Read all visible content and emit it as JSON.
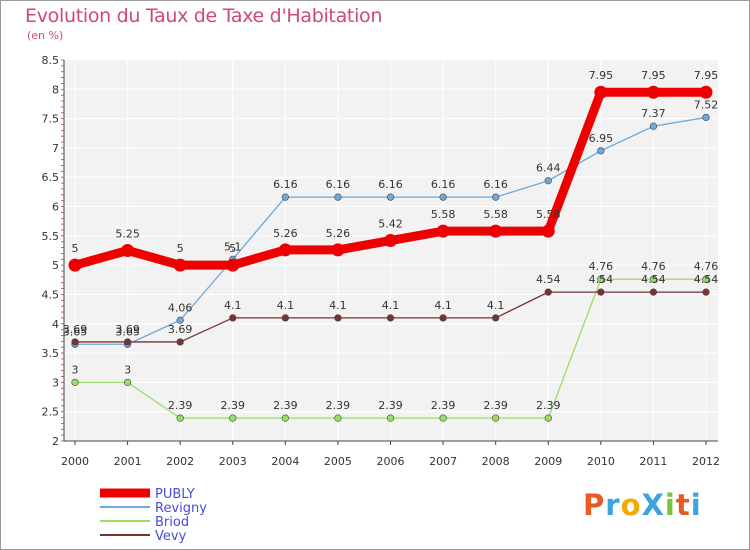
{
  "title": "Evolution du Taux de Taxe d'Habitation",
  "subtitle": "(en %)",
  "logo": {
    "text": "Proxiti",
    "letters": [
      {
        "ch": "P",
        "color": "#e85a1e"
      },
      {
        "ch": "r",
        "color": "#3aa3e0"
      },
      {
        "ch": "o",
        "color": "#f2a900"
      },
      {
        "ch": "X",
        "color": "#3aa3e0"
      },
      {
        "ch": "i",
        "color": "#7cc242"
      },
      {
        "ch": "t",
        "color": "#e85a1e"
      },
      {
        "ch": "i",
        "color": "#3aa3e0"
      }
    ]
  },
  "chart_data": {
    "type": "line",
    "title": "Evolution du Taux de Taxe d'Habitation",
    "ylabel": "(en %)",
    "xlabel": "",
    "ylim": [
      2,
      8.5
    ],
    "yticks": [
      "2",
      "2.5",
      "3",
      "3.5",
      "4",
      "4.5",
      "5",
      "5.5",
      "6",
      "6.5",
      "7",
      "7.5",
      "8",
      "8.5"
    ],
    "categories": [
      "2000",
      "2001",
      "2002",
      "2003",
      "2004",
      "2005",
      "2006",
      "2007",
      "2008",
      "2009",
      "2010",
      "2011",
      "2012"
    ],
    "grid": true,
    "legend": "bottom-left",
    "series": [
      {
        "name": "PUBLY",
        "color": "#ee0000",
        "values": [
          5,
          5.25,
          5,
          5,
          5.26,
          5.26,
          5.42,
          5.58,
          5.58,
          5.58,
          7.95,
          7.95,
          7.95
        ],
        "labels": [
          "5",
          "5.25",
          "5",
          "5",
          "5.26",
          "5.26",
          "5.42",
          "5.58",
          "5.58",
          "5.58",
          "7.95",
          "7.95",
          "7.95"
        ]
      },
      {
        "name": "Revigny",
        "color": "#6fa8dc",
        "values": [
          3.65,
          3.65,
          4.06,
          5.1,
          6.16,
          6.16,
          6.16,
          6.16,
          6.16,
          6.44,
          6.95,
          7.37,
          7.52
        ],
        "labels": [
          "3.65",
          "3.65",
          "4.06",
          "5.1",
          "6.16",
          "6.16",
          "6.16",
          "6.16",
          "6.16",
          "6.44",
          "6.95",
          "7.37",
          "7.52"
        ]
      },
      {
        "name": "Briod",
        "color": "#99dd66",
        "values": [
          3,
          3,
          2.39,
          2.39,
          2.39,
          2.39,
          2.39,
          2.39,
          2.39,
          2.39,
          4.76,
          4.76,
          4.76
        ],
        "labels": [
          "3",
          "3",
          "2.39",
          "2.39",
          "2.39",
          "2.39",
          "2.39",
          "2.39",
          "2.39",
          "2.39",
          "4.76",
          "4.76",
          "4.76"
        ]
      },
      {
        "name": "Vevy",
        "color": "#7a3333",
        "values": [
          3.69,
          3.69,
          3.69,
          4.1,
          4.1,
          4.1,
          4.1,
          4.1,
          4.1,
          4.54,
          4.54,
          4.54,
          4.54
        ],
        "labels": [
          "3.69",
          "3.69",
          "3.69",
          "4.1",
          "4.1",
          "4.1",
          "4.1",
          "4.1",
          "4.1",
          "4.54",
          "4.54",
          "4.54",
          "4.54"
        ]
      }
    ]
  }
}
